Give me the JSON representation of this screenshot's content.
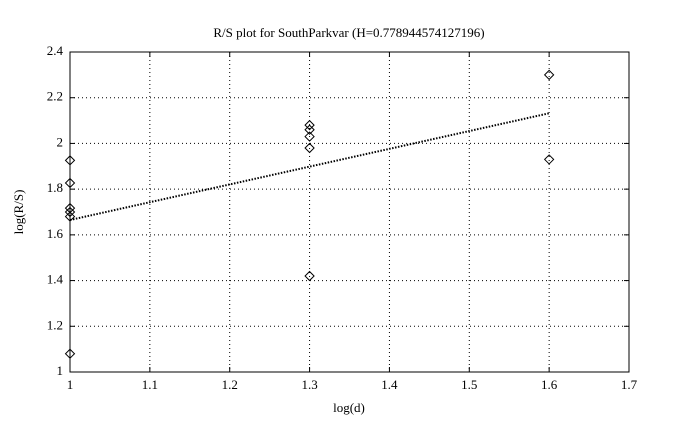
{
  "chart_data": {
    "type": "scatter",
    "title": "R/S plot for SouthParkvar (H=0.778944574127196)",
    "xlabel": "log(d)",
    "ylabel": "log(R/S)",
    "xlim": [
      1,
      1.7
    ],
    "xticks": [
      1,
      1.1,
      1.2,
      1.3,
      1.4,
      1.5,
      1.6,
      1.7
    ],
    "ylim": [
      1,
      2.4
    ],
    "yticks": [
      1,
      1.2,
      1.4,
      1.6,
      1.8,
      2,
      2.2,
      2.4
    ],
    "grid": true,
    "series": [
      {
        "color": "#000000",
        "marker": "diamond",
        "x": [
          1,
          1,
          1,
          1,
          1,
          1,
          1.3,
          1.3,
          1.3,
          1.3,
          1.3,
          1.6,
          1.6
        ],
        "values": [
          1.926,
          1.827,
          1.717,
          1.7,
          1.68,
          1.08,
          2.08,
          2.06,
          2.03,
          1.98,
          1.42,
          2.3,
          1.93
        ]
      },
      {
        "color": "#000000",
        "line": "dotted",
        "x": [
          1,
          1.6
        ],
        "values": [
          1.665,
          2.132
        ]
      }
    ]
  }
}
